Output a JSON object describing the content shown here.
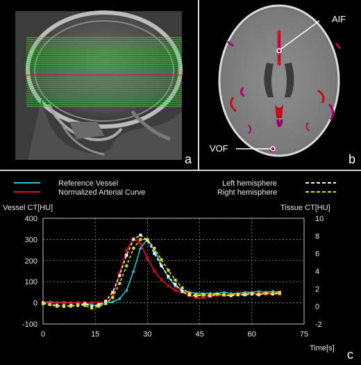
{
  "panel_a": {
    "letter": "a"
  },
  "panel_b": {
    "letter": "b",
    "aif_label": "AIF",
    "vof_label": "VOF"
  },
  "panel_c": {
    "letter": "c"
  },
  "colors": {
    "reference": "#22c8d8",
    "arterial": "#e0101c",
    "left": "#ffffff",
    "right": "#e8e000",
    "grid": "#b0b0b0",
    "plot_bg": "#000000",
    "axis": "#cccccc"
  },
  "chart_data": {
    "type": "line",
    "legend": {
      "reference": "Reference Vessel",
      "arterial": "Normalized Arterial Curve",
      "left": "Left hemisphere",
      "right": "Right hemisphere"
    },
    "ylabel_left": "Vessel CT[HU]",
    "ylabel_right": "Tissue CT[HU]",
    "xlabel": "Time[s]",
    "xlim": [
      0,
      75
    ],
    "ylim_left": [
      -100,
      400
    ],
    "ylim_right": [
      -2,
      10
    ],
    "x_ticks": [
      0,
      15,
      30,
      45,
      60,
      75
    ],
    "y_ticks_left": [
      -100,
      0,
      100,
      200,
      300,
      400
    ],
    "y_ticks_right": [
      -2,
      0,
      2,
      4,
      6,
      8,
      10
    ],
    "axis": "left",
    "series": [
      {
        "key": "reference",
        "axis": "left",
        "x": [
          0,
          2,
          4,
          6,
          8,
          10,
          12,
          14,
          16,
          18,
          20,
          22,
          24,
          26,
          28,
          30,
          32,
          34,
          36,
          38,
          40,
          42,
          44,
          46,
          48,
          50,
          52,
          54,
          56,
          58,
          60,
          62,
          64,
          66,
          68
        ],
        "y": [
          0,
          5,
          0,
          3,
          0,
          0,
          0,
          -10,
          -15,
          0,
          5,
          20,
          60,
          150,
          260,
          300,
          250,
          180,
          120,
          80,
          60,
          50,
          45,
          45,
          45,
          45,
          50,
          45,
          45,
          50,
          50,
          55,
          50,
          55,
          50
        ]
      },
      {
        "key": "arterial",
        "axis": "left",
        "x": [
          0,
          2,
          4,
          6,
          8,
          10,
          12,
          14,
          16,
          18,
          20,
          22,
          24,
          26,
          28,
          30,
          32,
          34,
          36,
          38,
          40,
          42,
          44,
          46,
          48,
          50,
          52,
          54,
          56,
          58,
          60,
          62,
          64,
          66,
          68
        ],
        "y": [
          0,
          0,
          0,
          0,
          0,
          0,
          0,
          0,
          0,
          0,
          30,
          140,
          250,
          305,
          280,
          210,
          150,
          110,
          80,
          60,
          50,
          35,
          25,
          25,
          30,
          35,
          35,
          40,
          40,
          40,
          45,
          45,
          40,
          45,
          40
        ]
      },
      {
        "key": "left",
        "axis": "right",
        "x": [
          0,
          2,
          4,
          6,
          8,
          10,
          12,
          14,
          16,
          18,
          20,
          22,
          24,
          26,
          28,
          30,
          32,
          34,
          36,
          38,
          40,
          42,
          44,
          46,
          48,
          50,
          52,
          54,
          56,
          58,
          60,
          62,
          64,
          66,
          68
        ],
        "y": [
          0.4,
          0.2,
          0.1,
          0.0,
          0.1,
          0.1,
          0.3,
          0.0,
          0.2,
          0.6,
          1.6,
          3.5,
          5.8,
          7.6,
          8.1,
          7.5,
          6.0,
          4.6,
          3.4,
          2.5,
          1.7,
          1.3,
          1.2,
          1.3,
          1.2,
          1.4,
          1.3,
          1.2,
          1.3,
          1.3,
          1.4,
          1.3,
          1.5,
          1.4,
          1.5
        ]
      },
      {
        "key": "right",
        "axis": "right",
        "x": [
          0,
          2,
          4,
          6,
          8,
          10,
          12,
          14,
          16,
          18,
          20,
          22,
          24,
          26,
          28,
          30,
          32,
          34,
          36,
          38,
          40,
          42,
          44,
          46,
          48,
          50,
          52,
          54,
          56,
          58,
          60,
          62,
          64,
          66,
          68
        ],
        "y": [
          0.3,
          0.2,
          0.0,
          0.1,
          0.0,
          0.2,
          0.1,
          -0.2,
          0.0,
          0.3,
          1.0,
          2.6,
          4.6,
          6.6,
          7.6,
          7.6,
          6.6,
          5.3,
          4.1,
          3.0,
          2.1,
          1.5,
          1.3,
          1.3,
          1.3,
          1.4,
          1.3,
          1.3,
          1.4,
          1.4,
          1.5,
          1.4,
          1.5,
          1.5,
          1.6
        ]
      }
    ]
  }
}
